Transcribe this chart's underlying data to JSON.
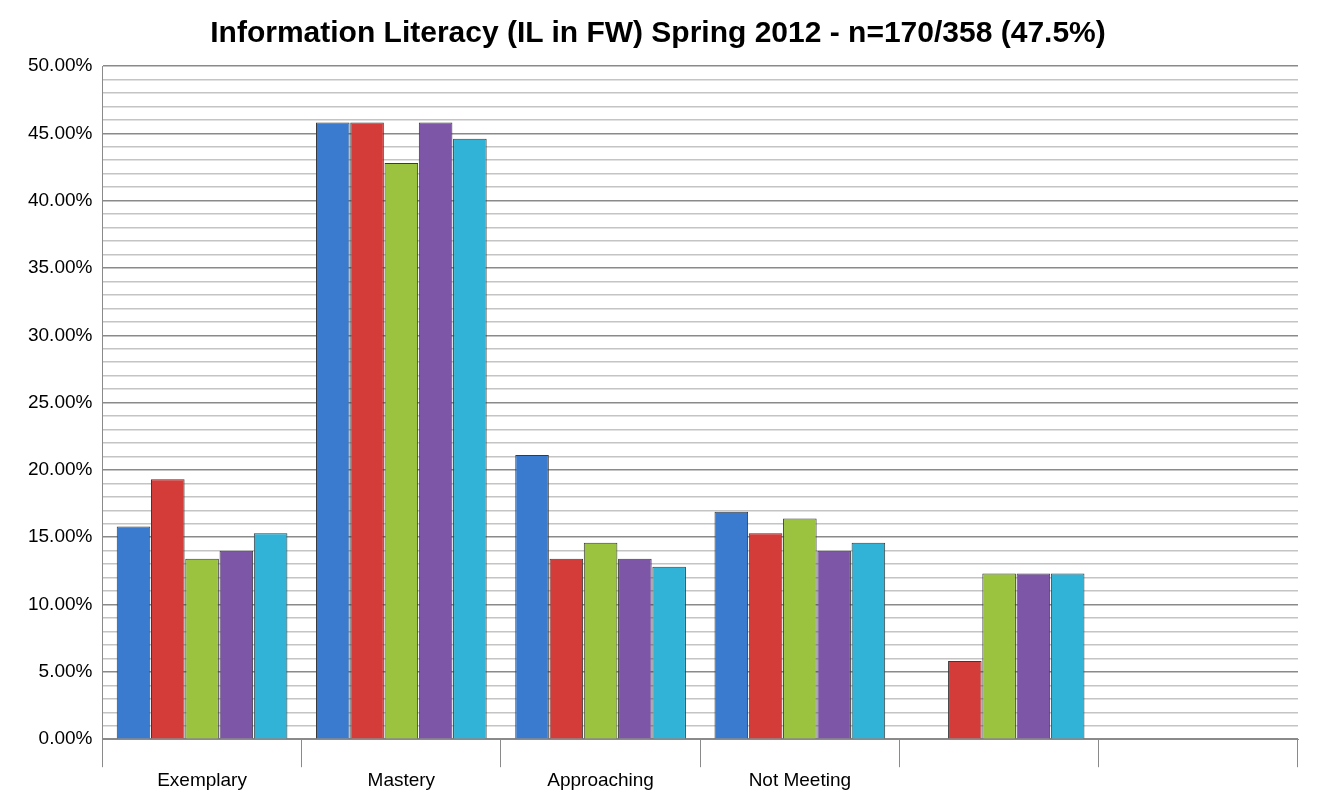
{
  "chart_data": {
    "type": "bar",
    "title": "Information Literacy (IL in FW) Spring 2012 - n=170/358 (47.5%)",
    "categories": [
      "Exemplary",
      "Mastery",
      "Approaching",
      "Not Meeting",
      null,
      null
    ],
    "series": [
      {
        "color": "#3a7bd0",
        "values": [
          15.8,
          45.8,
          21.1,
          16.9,
          0,
          null
        ]
      },
      {
        "color": "#d43c3a",
        "values": [
          19.3,
          45.8,
          13.4,
          15.3,
          5.8,
          null
        ]
      },
      {
        "color": "#9bc33f",
        "values": [
          13.4,
          42.8,
          14.6,
          16.4,
          12.3,
          null
        ]
      },
      {
        "color": "#7d56a8",
        "values": [
          14.0,
          45.8,
          13.4,
          14.0,
          12.3,
          null
        ]
      },
      {
        "color": "#30b3d6",
        "values": [
          15.3,
          44.6,
          12.8,
          14.6,
          12.3,
          null
        ]
      }
    ],
    "ylim": [
      0,
      50
    ],
    "yticks": [
      {
        "value": 0,
        "label": "0.00%"
      },
      {
        "value": 1,
        "label": null
      },
      {
        "value": 2,
        "label": null
      },
      {
        "value": 3,
        "label": null
      },
      {
        "value": 4,
        "label": null
      },
      {
        "value": 5,
        "label": "5.00%"
      },
      {
        "value": 6,
        "label": null
      },
      {
        "value": 7,
        "label": null
      },
      {
        "value": 8,
        "label": null
      },
      {
        "value": 9,
        "label": null
      },
      {
        "value": 10,
        "label": "10.00%"
      },
      {
        "value": 11,
        "label": null
      },
      {
        "value": 12,
        "label": null
      },
      {
        "value": 13,
        "label": null
      },
      {
        "value": 14,
        "label": null
      },
      {
        "value": 15,
        "label": "15.00%"
      },
      {
        "value": 16,
        "label": null
      },
      {
        "value": 17,
        "label": null
      },
      {
        "value": 18,
        "label": null
      },
      {
        "value": 19,
        "label": null
      },
      {
        "value": 20,
        "label": "20.00%"
      },
      {
        "value": 21,
        "label": null
      },
      {
        "value": 22,
        "label": null
      },
      {
        "value": 23,
        "label": null
      },
      {
        "value": 24,
        "label": null
      },
      {
        "value": 25,
        "label": "25.00%"
      },
      {
        "value": 26,
        "label": null
      },
      {
        "value": 27,
        "label": null
      },
      {
        "value": 28,
        "label": null
      },
      {
        "value": 29,
        "label": null
      },
      {
        "value": 30,
        "label": "30.00%"
      },
      {
        "value": 31,
        "label": null
      },
      {
        "value": 32,
        "label": null
      },
      {
        "value": 33,
        "label": null
      },
      {
        "value": 34,
        "label": null
      },
      {
        "value": 35,
        "label": "35.00%"
      },
      {
        "value": 36,
        "label": null
      },
      {
        "value": 37,
        "label": null
      },
      {
        "value": 38,
        "label": null
      },
      {
        "value": 39,
        "label": null
      },
      {
        "value": 40,
        "label": "40.00%"
      },
      {
        "value": 41,
        "label": null
      },
      {
        "value": 42,
        "label": null
      },
      {
        "value": 43,
        "label": null
      },
      {
        "value": 44,
        "label": null
      },
      {
        "value": 45,
        "label": "45.00%"
      },
      {
        "value": 46,
        "label": null
      },
      {
        "value": 47,
        "label": null
      },
      {
        "value": 48,
        "label": null
      },
      {
        "value": 49,
        "label": null
      },
      {
        "value": 50,
        "label": "50.00%"
      }
    ],
    "grid": "y",
    "legend": false
  }
}
